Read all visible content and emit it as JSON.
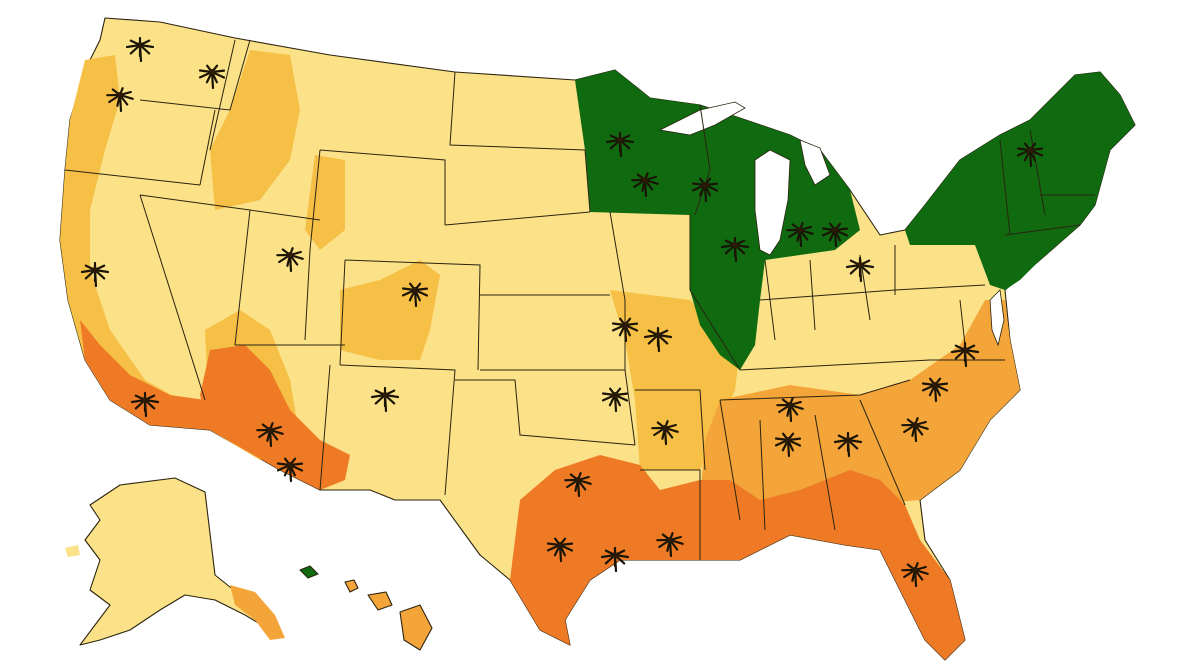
{
  "colors": {
    "background": "#ffffff",
    "base_yellow": "#fbe187",
    "light_orange": "#f6bf45",
    "orange": "#f3a53a",
    "deep_orange": "#ee7a26",
    "green": "#0f6a10",
    "border": "#2b2410",
    "palm": "#1a1405"
  },
  "legend": {
    "shown": false
  },
  "regions": [
    {
      "id": "pacific-northwest",
      "zone": "base_yellow"
    },
    {
      "id": "west-coast-strip",
      "zone": "light_orange"
    },
    {
      "id": "southern-california",
      "zone": "deep_orange"
    },
    {
      "id": "arizona-south",
      "zone": "deep_orange"
    },
    {
      "id": "midwest-north",
      "zone": "green"
    },
    {
      "id": "illinois",
      "zone": "green"
    },
    {
      "id": "new-england",
      "zone": "green"
    },
    {
      "id": "gulf-coast",
      "zone": "deep_orange"
    },
    {
      "id": "southeast",
      "zone": "orange"
    },
    {
      "id": "missouri-arkansas",
      "zone": "light_orange"
    },
    {
      "id": "great-plains",
      "zone": "base_yellow"
    },
    {
      "id": "alaska",
      "zone": "base_yellow"
    },
    {
      "id": "hawaii",
      "zone": "orange"
    }
  ],
  "icons": {
    "palm_tree": "palm-tree-icon",
    "count": 33
  }
}
